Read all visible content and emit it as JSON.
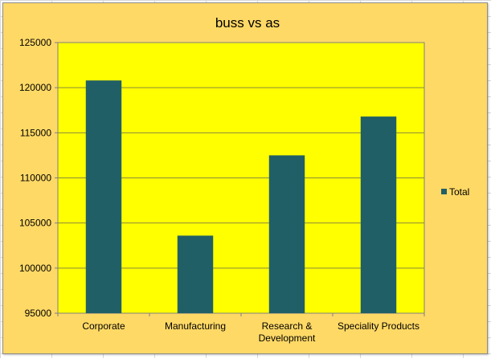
{
  "chart_data": {
    "type": "bar",
    "title": "buss vs as",
    "categories": [
      "Corporate",
      "Manufacturing",
      "Research & Development",
      "Speciality Products"
    ],
    "category_lines": [
      [
        "Corporate"
      ],
      [
        "Manufacturing"
      ],
      [
        "Research &",
        "Development"
      ],
      [
        "Speciality Products"
      ]
    ],
    "series": [
      {
        "name": "Total",
        "values": [
          120800,
          103600,
          112500,
          116800
        ],
        "color": "#215f66"
      }
    ],
    "ylim": [
      95000,
      125000
    ],
    "yticks": [
      95000,
      100000,
      105000,
      110000,
      115000,
      120000,
      125000
    ],
    "ytick_labels": [
      "95000",
      "100000",
      "105000",
      "110000",
      "115000",
      "120000",
      "125000"
    ],
    "grid": true,
    "legend_position": "right",
    "colors": {
      "chart_background": "#ffd966",
      "plot_background": "#ffff00",
      "gridline": "#8a8a3a"
    }
  }
}
